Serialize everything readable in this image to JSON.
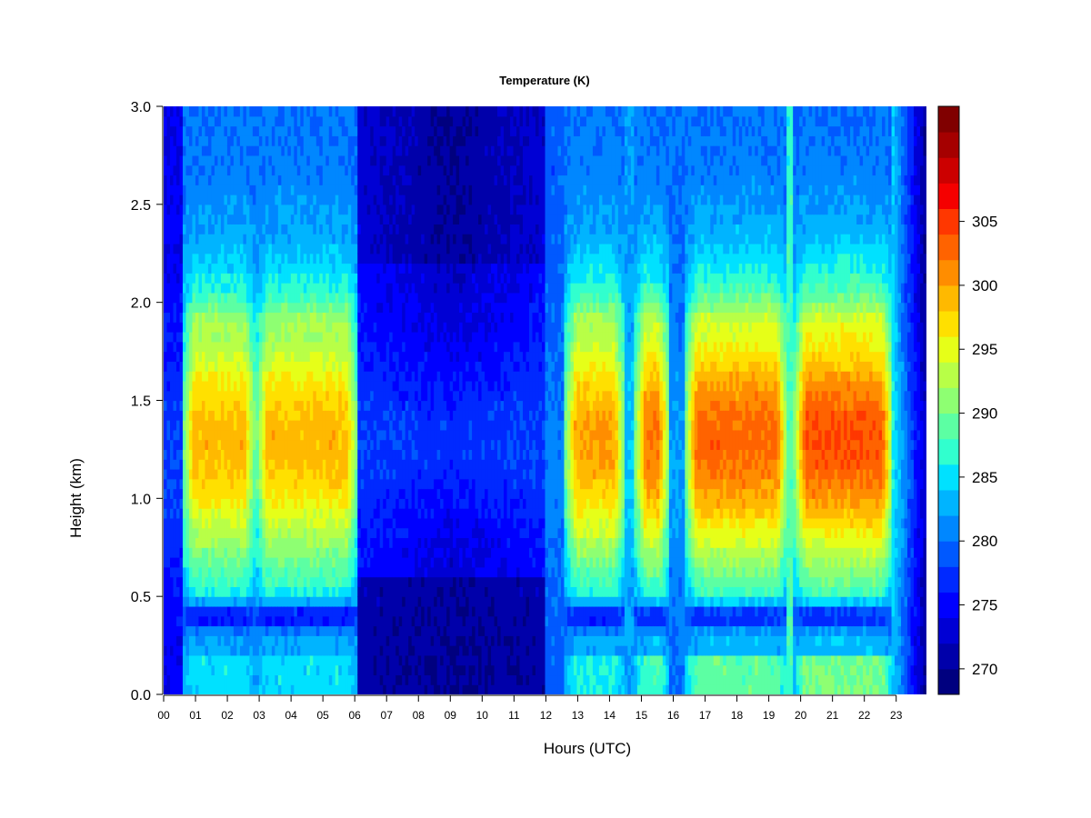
{
  "chart_data": {
    "type": "heatmap",
    "title": "Temperature (K)",
    "xlabel": "Hours (UTC)",
    "ylabel": "Height (km)",
    "xlim": [
      0,
      23.95
    ],
    "ylim": [
      0,
      3.0
    ],
    "x_ticks": [
      0,
      1,
      2,
      3,
      4,
      5,
      6,
      7,
      8,
      9,
      10,
      11,
      12,
      13,
      14,
      15,
      16,
      17,
      18,
      19,
      20,
      21,
      22,
      23
    ],
    "x_tick_labels": [
      "00",
      "01",
      "02",
      "03",
      "04",
      "05",
      "06",
      "07",
      "08",
      "09",
      "10",
      "11",
      "12",
      "13",
      "14",
      "15",
      "16",
      "17",
      "18",
      "19",
      "20",
      "21",
      "22",
      "23"
    ],
    "y_ticks": [
      0.0,
      0.5,
      1.0,
      1.5,
      2.0,
      2.5,
      3.0
    ],
    "y_tick_labels": [
      "0.0",
      "0.5",
      "1.0",
      "1.5",
      "2.0",
      "2.5",
      "3.0"
    ],
    "colorbar": {
      "min": 268,
      "max": 306,
      "step": 2,
      "ticks": [
        270,
        275,
        280,
        285,
        290,
        295,
        300,
        305
      ],
      "tick_labels": [
        "270",
        "275",
        "280",
        "285",
        "290",
        "295",
        "300",
        "305"
      ],
      "colors": [
        "#00007F",
        "#0000AA",
        "#0000D4",
        "#0000FF",
        "#0029FF",
        "#0059FF",
        "#0087FF",
        "#00B4FF",
        "#00E1FF",
        "#31FFCE",
        "#5CFFA3",
        "#8EFF72",
        "#B8FF47",
        "#E6FF18",
        "#FFE000",
        "#FFB900",
        "#FF8D00",
        "#FF6300",
        "#FF3700",
        "#F50000",
        "#CC0000",
        "#A50000",
        "#800000"
      ]
    },
    "segments": [
      {
        "hours": [
          0.0,
          0.6
        ],
        "regime": "cold column",
        "peak_K": 276
      },
      {
        "hours": [
          0.6,
          2.9
        ],
        "regime": "warm",
        "peak_K": 299,
        "peak_height_km": 1.25
      },
      {
        "hours": [
          2.9,
          6.1
        ],
        "regime": "warm",
        "peak_K": 299,
        "peak_height_km": 1.25
      },
      {
        "hours": [
          6.1,
          12.0
        ],
        "regime": "cold",
        "min_K": 272
      },
      {
        "hours": [
          12.0,
          12.6
        ],
        "regime": "cool",
        "peak_K": 282
      },
      {
        "hours": [
          12.6,
          14.5
        ],
        "regime": "warm",
        "peak_K": 300,
        "peak_height_km": 1.25
      },
      {
        "hours": [
          14.5,
          14.8
        ],
        "regime": "cool",
        "peak_K": 285
      },
      {
        "hours": [
          14.8,
          15.9
        ],
        "regime": "warm",
        "peak_K": 302,
        "peak_height_km": 1.25
      },
      {
        "hours": [
          15.9,
          16.4
        ],
        "regime": "cool",
        "peak_K": 283
      },
      {
        "hours": [
          16.4,
          19.6
        ],
        "regime": "hot",
        "peak_K": 303,
        "peak_height_km": 1.25
      },
      {
        "hours": [
          19.6,
          19.8
        ],
        "regime": "cool",
        "peak_K": 290
      },
      {
        "hours": [
          19.8,
          22.9
        ],
        "regime": "hot",
        "peak_K": 304,
        "peak_height_km": 1.25
      },
      {
        "hours": [
          22.9,
          23.95
        ],
        "regime": "cooling",
        "min_K": 270
      }
    ],
    "grid": false,
    "legend": "colorbar right"
  }
}
